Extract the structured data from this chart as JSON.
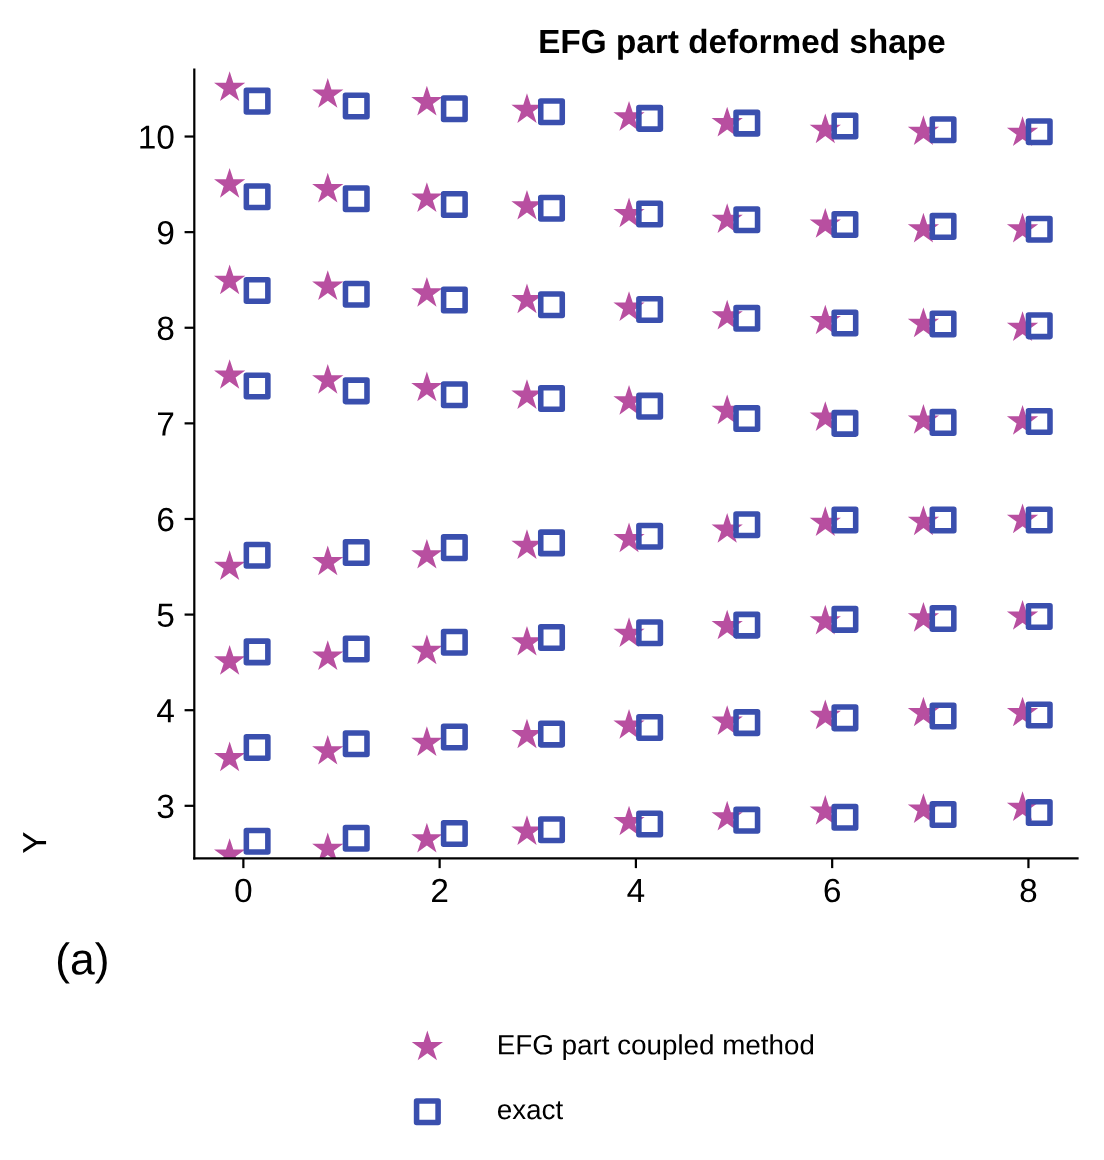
{
  "chart_data": {
    "type": "scatter",
    "title": "EFG part deformed shape",
    "ylabel": "Y",
    "annotations": [
      "(a)"
    ],
    "xlim": [
      -0.5,
      8.5
    ],
    "xticks": [
      0,
      2,
      4,
      6,
      8
    ],
    "ylim": [
      2.45,
      10.7
    ],
    "yticks": [
      3,
      4,
      5,
      6,
      7,
      8,
      9,
      10
    ],
    "grid": false,
    "legend": "bottom",
    "series": [
      {
        "name": "EFG part coupled method",
        "color": "#b84fa0",
        "marker": "star",
        "x": [
          -0.14,
          0.86,
          1.87,
          2.89,
          3.93,
          4.93,
          5.93,
          6.93,
          7.94,
          -0.14,
          0.86,
          1.87,
          2.89,
          3.93,
          4.93,
          5.93,
          6.93,
          7.94,
          -0.14,
          0.86,
          1.87,
          2.89,
          3.93,
          4.93,
          5.93,
          6.93,
          7.94,
          -0.14,
          0.86,
          1.87,
          2.89,
          3.93,
          4.93,
          5.93,
          6.93,
          7.94,
          -0.14,
          0.86,
          1.87,
          2.89,
          3.93,
          4.93,
          5.93,
          6.93,
          7.94,
          -0.14,
          0.86,
          1.87,
          2.89,
          3.93,
          4.93,
          5.93,
          6.93,
          7.94,
          -0.14,
          0.86,
          1.87,
          2.89,
          3.93,
          4.93,
          5.93,
          6.93,
          7.94,
          -0.14,
          0.86,
          1.87,
          2.89,
          3.93,
          4.93,
          5.93,
          6.93,
          7.94
        ],
        "values": [
          10.51,
          10.44,
          10.36,
          10.28,
          10.2,
          10.14,
          10.07,
          10.05,
          10.04,
          9.5,
          9.45,
          9.35,
          9.27,
          9.19,
          9.13,
          9.08,
          9.03,
          9.03,
          8.49,
          8.43,
          8.36,
          8.29,
          8.21,
          8.12,
          8.07,
          8.04,
          8.0,
          7.5,
          7.45,
          7.37,
          7.29,
          7.23,
          7.13,
          7.06,
          7.03,
          7.02,
          5.5,
          5.55,
          5.62,
          5.72,
          5.79,
          5.89,
          5.96,
          5.97,
          5.99,
          4.51,
          4.56,
          4.62,
          4.71,
          4.8,
          4.88,
          4.93,
          4.96,
          4.98,
          3.5,
          3.57,
          3.66,
          3.74,
          3.84,
          3.88,
          3.94,
          3.97,
          3.97,
          2.49,
          2.55,
          2.65,
          2.73,
          2.83,
          2.88,
          2.94,
          2.96,
          2.98
        ]
      },
      {
        "name": "exact",
        "color": "#3a4fae",
        "marker": "square",
        "x": [
          0.14,
          1.15,
          2.15,
          3.14,
          4.14,
          5.13,
          6.13,
          7.13,
          8.11,
          0.14,
          1.15,
          2.15,
          3.14,
          4.14,
          5.13,
          6.13,
          7.13,
          8.11,
          0.14,
          1.15,
          2.15,
          3.14,
          4.14,
          5.13,
          6.13,
          7.13,
          8.11,
          0.14,
          1.15,
          2.15,
          3.14,
          4.14,
          5.13,
          6.13,
          7.13,
          8.11,
          0.14,
          1.15,
          2.15,
          3.14,
          4.14,
          5.13,
          6.13,
          7.13,
          8.11,
          0.14,
          1.15,
          2.15,
          3.14,
          4.14,
          5.13,
          6.13,
          7.13,
          8.11,
          0.14,
          1.15,
          2.15,
          3.14,
          4.14,
          5.13,
          6.13,
          7.13,
          8.11,
          0.14,
          1.15,
          2.15,
          3.14,
          4.14,
          5.13,
          6.13,
          7.13,
          8.11
        ],
        "values": [
          10.37,
          10.32,
          10.29,
          10.26,
          10.19,
          10.14,
          10.11,
          10.07,
          10.05,
          9.37,
          9.35,
          9.29,
          9.25,
          9.19,
          9.13,
          9.08,
          9.06,
          9.03,
          8.39,
          8.35,
          8.29,
          8.24,
          8.19,
          8.1,
          8.05,
          8.04,
          8.02,
          7.39,
          7.34,
          7.3,
          7.26,
          7.18,
          7.05,
          7.0,
          7.01,
          7.02,
          5.62,
          5.65,
          5.7,
          5.75,
          5.82,
          5.94,
          5.99,
          5.99,
          5.99,
          4.61,
          4.64,
          4.71,
          4.76,
          4.81,
          4.89,
          4.95,
          4.96,
          4.98,
          3.61,
          3.65,
          3.72,
          3.75,
          3.82,
          3.87,
          3.92,
          3.94,
          3.95,
          2.63,
          2.66,
          2.71,
          2.75,
          2.81,
          2.85,
          2.88,
          2.91,
          2.93
        ]
      }
    ]
  }
}
